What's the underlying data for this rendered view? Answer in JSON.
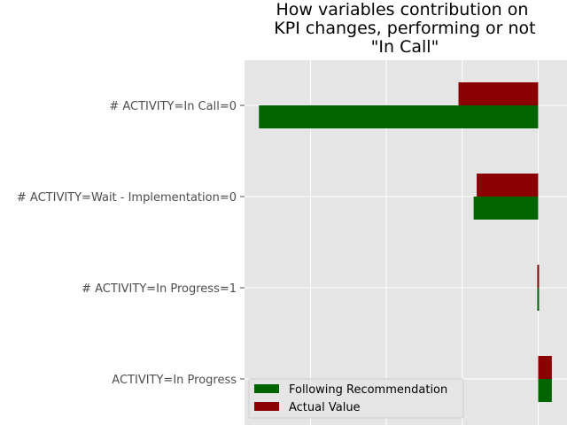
{
  "chart_data": {
    "type": "bar",
    "orientation": "horizontal",
    "title": "How variables contribution on\nKPI changes, performing or not\n\"In Call\"",
    "title_lines": [
      "How variables contribution on",
      "KPI changes, performing or not",
      "\"In Call\""
    ],
    "categories": [
      "# ACTIVITY=In Call=0",
      "# ACTIVITY=Wait - Implementation=0",
      "# ACTIVITY=In Progress=1",
      "ACTIVITY=In Progress"
    ],
    "series": [
      {
        "name": "Following Recommendation",
        "color": "#006400",
        "values": [
          -0.184,
          -0.0425,
          0.001,
          0.009
        ]
      },
      {
        "name": "Actual Value",
        "color": "#8b0000",
        "values": [
          -0.0525,
          -0.0405,
          0.001,
          0.009
        ]
      }
    ],
    "xlim": [
      -0.1935,
      0.019
    ],
    "grid": true,
    "x_tick_labels_visible": false,
    "legend_position": "lower left",
    "background": "#e5e5e5",
    "grid_color": "#ffffff"
  }
}
